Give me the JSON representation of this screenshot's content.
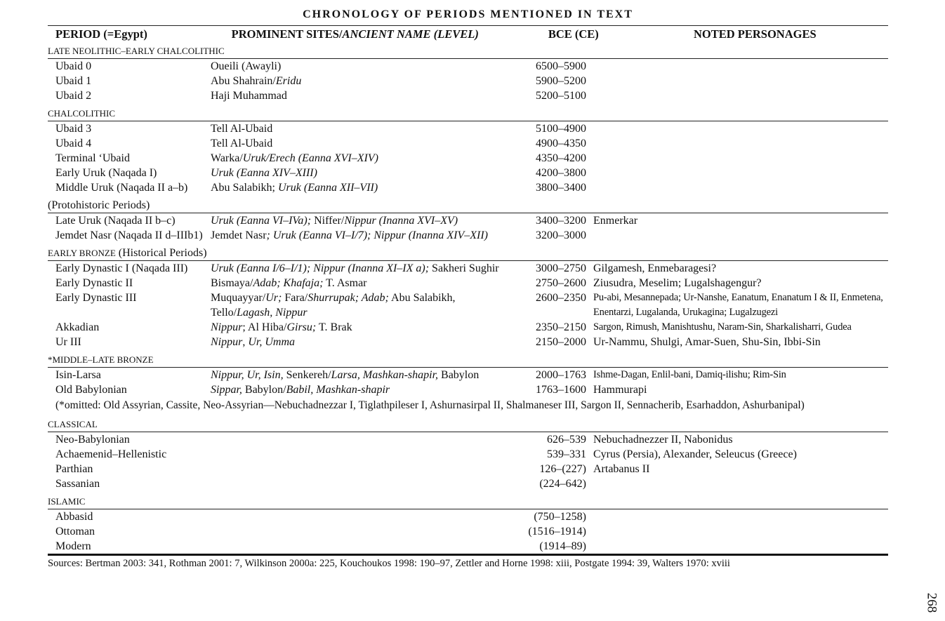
{
  "title": "CHRONOLOGY OF PERIODS MENTIONED IN TEXT",
  "headers": {
    "period": "PERIOD (=Egypt)",
    "sites": "PROMINENT SITES/",
    "sites_italic": "ANCIENT NAME (LEVEL)",
    "bce": "BCE (CE)",
    "personages": "NOTED PERSONAGES"
  },
  "sections": [
    {
      "label": "LATE NEOLITHIC–EARLY CHALCOLITHIC",
      "rows": [
        {
          "period": "Ubaid 0",
          "sites": [
            {
              "t": "Oueili (Awayli)"
            }
          ],
          "bce": "6500–5900",
          "people": ""
        },
        {
          "period": "Ubaid 1",
          "sites": [
            {
              "t": "Abu Shahrain/"
            },
            {
              "t": "Eridu",
              "i": true
            }
          ],
          "bce": "5900–5200",
          "people": ""
        },
        {
          "period": "Ubaid 2",
          "sites": [
            {
              "t": "Haji Muhammad"
            }
          ],
          "bce": "5200–5100",
          "people": ""
        }
      ]
    },
    {
      "label": "CHALCOLITHIC",
      "rows": [
        {
          "period": "Ubaid 3",
          "sites": [
            {
              "t": "Tell Al-Ubaid"
            }
          ],
          "bce": "5100–4900",
          "people": ""
        },
        {
          "period": "Ubaid 4",
          "sites": [
            {
              "t": "Tell Al-Ubaid"
            }
          ],
          "bce": "4900–4350",
          "people": ""
        },
        {
          "period": "Terminal ‘Ubaid",
          "sites": [
            {
              "t": "Warka/"
            },
            {
              "t": "Uruk/Erech (Eanna XVI–XIV)",
              "i": true
            }
          ],
          "bce": "4350–4200",
          "people": ""
        },
        {
          "period": "Early Uruk (Naqada I)",
          "sites": [
            {
              "t": "Uruk (Eanna XIV–XIII)",
              "i": true
            }
          ],
          "bce": "4200–3800",
          "people": ""
        },
        {
          "period": "Middle Uruk (Naqada II a–b)",
          "sites": [
            {
              "t": "Abu Salabikh; "
            },
            {
              "t": "Uruk (Eanna XII–VII)",
              "i": true
            }
          ],
          "bce": "3800–3400",
          "people": ""
        }
      ]
    },
    {
      "label": "",
      "paren": "(Protohistoric Periods)",
      "rows": [
        {
          "period": "Late Uruk (Naqada II b–c)",
          "sites": [
            {
              "t": "Uruk (Eanna VI–IVa);",
              "i": true
            },
            {
              "t": " Niffer/"
            },
            {
              "t": "Nippur (Inanna XVI–XV)",
              "i": true
            }
          ],
          "bce": "3400–3200",
          "people": "Enmerkar"
        },
        {
          "period": "Jemdet Nasr (Naqada II d–IIIb1)",
          "sites": [
            {
              "t": "Jemdet Nasr"
            },
            {
              "t": "; Uruk (Eanna VI–I/7); Nippur (Inanna XIV–XII)",
              "i": true
            }
          ],
          "bce": "3200–3000",
          "people": ""
        }
      ]
    },
    {
      "label": "EARLY BRONZE",
      "paren": " (Historical Periods)",
      "rows": [
        {
          "period": "Early Dynastic I (Naqada III)",
          "sites": [
            {
              "t": "Uruk (Eanna I/6–I/1); Nippur (Inanna XI–IX a);",
              "i": true
            },
            {
              "t": " Sakheri Sughir"
            }
          ],
          "bce": "3000–2750",
          "people": "Gilgamesh, Enmebaragesi?"
        },
        {
          "period": "Early Dynastic II",
          "sites": [
            {
              "t": "Bismaya/"
            },
            {
              "t": "Adab; Khafaja;",
              "i": true
            },
            {
              "t": " T. Asmar"
            }
          ],
          "bce": "2750–2600",
          "people": "Ziusudra, Meselim; Lugalshagengur?"
        },
        {
          "period": "Early Dynastic III",
          "sites": [
            {
              "t": "Muquayyar/"
            },
            {
              "t": "Ur;",
              "i": true
            },
            {
              "t": " Fara/"
            },
            {
              "t": "Shurrupak; Adab;",
              "i": true
            },
            {
              "t": " Abu Salabikh, Tello/"
            },
            {
              "t": "Lagash, Nippur",
              "i": true
            }
          ],
          "bce": "2600–2350",
          "people": "Pu-abi, Mesannepada; Ur-Nanshe, Eanatum, Enanatum I & II, Enmetena, Enentarzi, Lugalanda, Urukagina; Lugalzugezi",
          "small": true,
          "two": true
        },
        {
          "period": "Akkadian",
          "sites": [
            {
              "t": "Nippur",
              "i": true
            },
            {
              "t": "; Al Hiba/"
            },
            {
              "t": "Girsu;",
              "i": true
            },
            {
              "t": " T. Brak"
            }
          ],
          "bce": "2350–2150",
          "people": "Sargon, Rimush, Manishtushu, Naram-Sin, Sharkalisharri, Gudea",
          "small": true
        },
        {
          "period": "Ur III",
          "sites": [
            {
              "t": "Nippur",
              "i": true
            },
            {
              "t": ", "
            },
            {
              "t": "Ur, Umma",
              "i": true
            }
          ],
          "bce": "2150–2000",
          "people": "Ur-Nammu, Shulgi, Amar-Suen, Shu-Sin, Ibbi-Sin"
        }
      ]
    },
    {
      "label": "*MIDDLE–LATE BRONZE",
      "rows": [
        {
          "period": "Isin-Larsa",
          "sites": [
            {
              "t": "Nippur, Ur, Isin,",
              "i": true
            },
            {
              "t": " Senkereh/"
            },
            {
              "t": "Larsa, Mashkan-shapir,",
              "i": true
            },
            {
              "t": " Babylon"
            }
          ],
          "bce": "2000–1763",
          "people": "Ishme-Dagan, Enlil-bani, Damiq-ilishu; Rim-Sin",
          "small": true
        },
        {
          "period": "Old Babylonian",
          "sites": [
            {
              "t": "Sippar,",
              "i": true
            },
            {
              "t": " Babylon/"
            },
            {
              "t": "Babil, Mashkan-shapir",
              "i": true
            }
          ],
          "bce": "1763–1600",
          "people": "Hammurapi"
        }
      ]
    },
    {
      "note": "(*omitted: Old Assyrian, Cassite, Neo-Assyrian—Nebuchadnezzar I, Tiglathpileser I, Ashurnasirpal II, Shalmaneser III, Sargon II, Sennacherib, Esarhaddon, Ashurbanipal)"
    },
    {
      "label": "CLASSICAL",
      "rows": [
        {
          "period": "Neo-Babylonian",
          "sites": [],
          "bce": "626–539",
          "people": "Nebuchadnezzer II, Nabonidus"
        },
        {
          "period": "Achaemenid–Hellenistic",
          "sites": [],
          "bce": "539–331",
          "people": "Cyrus (Persia), Alexander, Seleucus (Greece)"
        },
        {
          "period": "Parthian",
          "sites": [],
          "bce": "126–(227)",
          "people": "Artabanus II"
        },
        {
          "period": "Sassanian",
          "sites": [],
          "bce": "(224–642)",
          "people": ""
        }
      ]
    },
    {
      "label": "ISLAMIC",
      "rows": [
        {
          "period": "Abbasid",
          "sites": [],
          "bce": "(750–1258)",
          "people": ""
        },
        {
          "period": "Ottoman",
          "sites": [],
          "bce": "(1516–1914)",
          "people": ""
        },
        {
          "period": "Modern",
          "sites": [],
          "bce": "(1914–89)",
          "people": ""
        }
      ]
    }
  ],
  "sources": "Sources: Bertman 2003: 341, Rothman 2001: 7, Wilkinson 2000a: 225, Kouchoukos 1998: 190–97, Zettler and Horne 1998: xiii, Postgate 1994: 39, Walters 1970: xviii",
  "page_number": "268"
}
